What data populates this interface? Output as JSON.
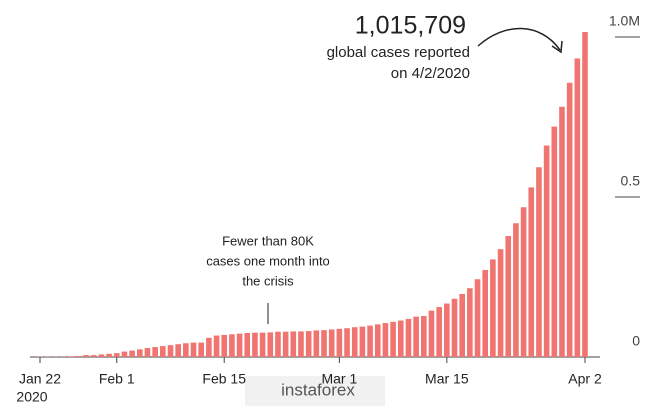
{
  "chart_data": {
    "type": "bar",
    "categories": [
      "Jan 22",
      null,
      null,
      null,
      null,
      null,
      null,
      null,
      null,
      null,
      "Feb 1",
      null,
      null,
      null,
      null,
      null,
      null,
      null,
      null,
      null,
      null,
      null,
      null,
      null,
      "Feb 15",
      null,
      null,
      null,
      null,
      null,
      null,
      null,
      null,
      null,
      null,
      null,
      null,
      null,
      null,
      "Mar 1",
      null,
      null,
      null,
      null,
      null,
      null,
      null,
      null,
      null,
      null,
      null,
      null,
      null,
      "Mar 15",
      null,
      null,
      null,
      null,
      null,
      null,
      null,
      null,
      null,
      null,
      null,
      null,
      null,
      null,
      null,
      null,
      null,
      "Apr 2"
    ],
    "year_label": "2020",
    "values": [
      0.001,
      0.001,
      0.001,
      0.001,
      0.002,
      0.003,
      0.006,
      0.006,
      0.008,
      0.01,
      0.012,
      0.017,
      0.02,
      0.024,
      0.028,
      0.031,
      0.034,
      0.037,
      0.04,
      0.043,
      0.045,
      0.045,
      0.06,
      0.067,
      0.069,
      0.071,
      0.073,
      0.075,
      0.076,
      0.076,
      0.077,
      0.079,
      0.079,
      0.08,
      0.08,
      0.081,
      0.083,
      0.084,
      0.086,
      0.088,
      0.09,
      0.093,
      0.095,
      0.098,
      0.102,
      0.106,
      0.11,
      0.114,
      0.119,
      0.126,
      0.128,
      0.145,
      0.156,
      0.167,
      0.182,
      0.197,
      0.215,
      0.243,
      0.272,
      0.305,
      0.337,
      0.378,
      0.418,
      0.468,
      0.53,
      0.593,
      0.661,
      0.72,
      0.782,
      0.857,
      0.933,
      1.015709
    ],
    "color": "#f07470",
    "ylim": [
      0,
      1
    ],
    "yticks": [
      0,
      0.5,
      {
        "value": 1,
        "label": "1.0M"
      }
    ],
    "annotations": {
      "peak": [
        "1,015,709",
        "global cases reported",
        "on 4/2/2020"
      ],
      "month": [
        "Fewer than 80K",
        "cases one month into",
        "the crisis"
      ]
    },
    "watermark": "instaforex"
  }
}
